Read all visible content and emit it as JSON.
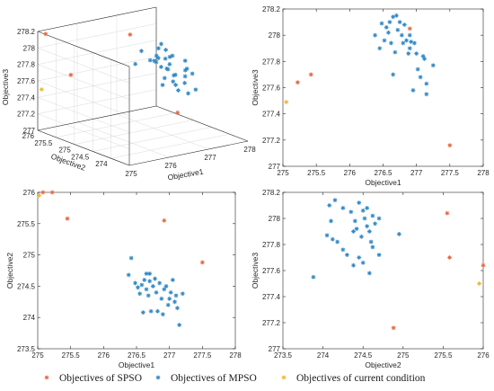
{
  "colors": {
    "spso": "#e8663d",
    "mpso": "#2f87c4",
    "current": "#f2b632"
  },
  "legend": [
    {
      "label": "Objectives of SPSO",
      "series": "spso",
      "color": "#e8663d"
    },
    {
      "label": "Objectives of MPSO",
      "series": "mpso",
      "color": "#2f87c4"
    },
    {
      "label": "Objectives of current condition",
      "series": "current",
      "color": "#f2b632"
    }
  ],
  "chart_data": [
    {
      "type": "scatter3d",
      "xlabel": "Objective1",
      "ylabel": "Objective2",
      "zlabel": "Objective3",
      "xlim": [
        275,
        278
      ],
      "ylim": [
        273.5,
        276
      ],
      "zlim": [
        277,
        278.2
      ],
      "xticks": [
        "275",
        "276",
        "277",
        "278"
      ],
      "yticks": [
        "274",
        "274.5",
        "275",
        "275.5",
        "276"
      ],
      "zticks": [
        "277",
        "277.2",
        "277.4",
        "277.6",
        "277.8",
        "278",
        "278.2"
      ],
      "series": [
        {
          "key": "spso",
          "points": [
            [
              275.2,
              276.0,
              278.15
            ],
            [
              275.45,
              275.58,
              277.7
            ],
            [
              276.92,
              275.55,
              278.05
            ],
            [
              277.5,
              274.88,
              277.16
            ]
          ]
        },
        {
          "key": "mpso",
          "points": [
            [
              276.4,
              274.68,
              278.05
            ],
            [
              276.5,
              274.55,
              277.95
            ],
            [
              276.62,
              274.45,
              278.1
            ],
            [
              276.7,
              274.6,
              277.9
            ],
            [
              276.75,
              274.52,
              277.85
            ],
            [
              276.8,
              274.7,
              277.95
            ],
            [
              276.85,
              274.3,
              277.7
            ],
            [
              276.9,
              274.45,
              277.88
            ],
            [
              276.95,
              274.58,
              277.8
            ],
            [
              277.0,
              274.4,
              277.75
            ],
            [
              277.05,
              274.2,
              277.68
            ],
            [
              277.1,
              274.5,
              277.6
            ],
            [
              277.15,
              274.1,
              277.8
            ],
            [
              276.55,
              274.38,
              278.0
            ],
            [
              276.65,
              274.6,
              277.92
            ],
            [
              276.72,
              274.25,
              278.02
            ],
            [
              276.82,
              274.48,
              277.95
            ],
            [
              276.88,
              274.62,
              277.6
            ],
            [
              276.98,
              274.3,
              277.58
            ],
            [
              277.2,
              274.35,
              277.72
            ],
            [
              276.6,
              274.05,
              278.08
            ],
            [
              276.78,
              274.55,
              278.12
            ],
            [
              276.92,
              274.0,
              277.9
            ],
            [
              277.05,
              273.9,
              277.65
            ],
            [
              277.12,
              274.18,
              277.55
            ],
            [
              276.45,
              274.9,
              277.85
            ],
            [
              276.58,
              274.15,
              277.9
            ],
            [
              277.25,
              274.4,
              277.78
            ],
            [
              276.7,
              274.12,
              277.82
            ],
            [
              276.85,
              274.5,
              278.05
            ],
            [
              276.68,
              274.35,
              277.75
            ],
            [
              276.95,
              274.08,
              277.98
            ]
          ]
        },
        {
          "key": "current",
          "points": [
            [
              275.05,
              275.95,
              277.5
            ]
          ]
        }
      ]
    },
    {
      "type": "scatter",
      "xlabel": "Objective1",
      "ylabel": "Objective3",
      "xlim": [
        275,
        278
      ],
      "ylim": [
        277,
        278.2
      ],
      "xticks": [
        "275",
        "275.5",
        "276",
        "276.5",
        "277",
        "277.5",
        "278"
      ],
      "yticks": [
        "277",
        "277.2",
        "277.4",
        "277.6",
        "277.8",
        "278",
        "278.2"
      ],
      "series": [
        {
          "key": "spso",
          "points": [
            [
              275.22,
              277.64
            ],
            [
              275.42,
              277.7
            ],
            [
              276.9,
              278.05
            ],
            [
              277.5,
              277.16
            ]
          ]
        },
        {
          "key": "mpso",
          "points": [
            [
              276.38,
              278.0
            ],
            [
              276.45,
              277.9
            ],
            [
              276.48,
              278.09
            ],
            [
              276.52,
              277.96
            ],
            [
              276.55,
              278.06
            ],
            [
              276.58,
              278.02
            ],
            [
              276.6,
              278.1
            ],
            [
              276.62,
              277.94
            ],
            [
              276.65,
              277.7
            ],
            [
              276.65,
              278.14
            ],
            [
              276.7,
              278.15
            ],
            [
              276.72,
              278.04
            ],
            [
              276.75,
              278.1
            ],
            [
              276.78,
              278.0
            ],
            [
              276.8,
              277.94
            ],
            [
              276.82,
              278.08
            ],
            [
              276.85,
              277.96
            ],
            [
              276.88,
              277.86
            ],
            [
              276.9,
              277.9
            ],
            [
              276.92,
              277.95
            ],
            [
              276.95,
              277.58
            ],
            [
              276.97,
              277.94
            ],
            [
              277.0,
              277.86
            ],
            [
              277.02,
              277.74
            ],
            [
              277.06,
              277.68
            ],
            [
              277.1,
              277.84
            ],
            [
              277.12,
              277.82
            ],
            [
              277.15,
              277.55
            ],
            [
              277.15,
              277.63
            ],
            [
              277.25,
              277.77
            ],
            [
              276.9,
              278.0
            ],
            [
              276.68,
              277.87
            ]
          ]
        },
        {
          "key": "current",
          "points": [
            [
              275.05,
              277.49
            ]
          ]
        }
      ]
    },
    {
      "type": "scatter",
      "xlabel": "Objective1",
      "ylabel": "Objective2",
      "xlim": [
        275,
        278
      ],
      "ylim": [
        273.5,
        276
      ],
      "xticks": [
        "275",
        "275.5",
        "276",
        "276.5",
        "277",
        "277.5",
        "278"
      ],
      "yticks": [
        "273.5",
        "274",
        "274.5",
        "275",
        "275.5",
        "276"
      ],
      "series": [
        {
          "key": "spso",
          "points": [
            [
              275.08,
              276.0
            ],
            [
              275.22,
              276.0
            ],
            [
              275.45,
              275.58
            ],
            [
              276.92,
              275.55
            ],
            [
              277.5,
              274.88
            ]
          ]
        },
        {
          "key": "mpso",
          "points": [
            [
              276.38,
              274.68
            ],
            [
              276.42,
              274.95
            ],
            [
              276.48,
              274.55
            ],
            [
              276.52,
              274.48
            ],
            [
              276.55,
              274.38
            ],
            [
              276.58,
              274.52
            ],
            [
              276.62,
              274.6
            ],
            [
              276.65,
              274.45
            ],
            [
              276.65,
              274.7
            ],
            [
              276.68,
              274.35
            ],
            [
              276.7,
              274.58
            ],
            [
              276.72,
              274.1
            ],
            [
              276.75,
              274.5
            ],
            [
              276.78,
              274.62
            ],
            [
              276.8,
              274.4
            ],
            [
              276.82,
              274.1
            ],
            [
              276.85,
              274.55
            ],
            [
              276.88,
              274.3
            ],
            [
              276.9,
              274.05
            ],
            [
              276.92,
              274.45
            ],
            [
              276.95,
              274.5
            ],
            [
              276.98,
              274.2
            ],
            [
              277.0,
              274.3
            ],
            [
              277.02,
              274.4
            ],
            [
              277.05,
              274.6
            ],
            [
              277.08,
              274.25
            ],
            [
              277.1,
              274.35
            ],
            [
              277.12,
              274.15
            ],
            [
              277.15,
              273.88
            ],
            [
              277.2,
              274.38
            ],
            [
              276.6,
              274.08
            ],
            [
              276.7,
              274.7
            ]
          ]
        },
        {
          "key": "current",
          "points": [
            [
              275.02,
              275.95
            ]
          ]
        }
      ]
    },
    {
      "type": "scatter",
      "xlabel": "Objective2",
      "ylabel": "Objective3",
      "xlim": [
        273.5,
        276
      ],
      "ylim": [
        277,
        278.2
      ],
      "xticks": [
        "273.5",
        "274",
        "274.5",
        "275",
        "275.5",
        "276"
      ],
      "yticks": [
        "277",
        "277.2",
        "277.4",
        "277.6",
        "277.8",
        "278",
        "278.2"
      ],
      "series": [
        {
          "key": "spso",
          "points": [
            [
              274.88,
              277.16
            ],
            [
              275.55,
              278.04
            ],
            [
              275.58,
              277.7
            ],
            [
              276.0,
              277.64
            ]
          ]
        },
        {
          "key": "mpso",
          "points": [
            [
              273.88,
              277.55
            ],
            [
              274.05,
              277.87
            ],
            [
              274.08,
              278.1
            ],
            [
              274.1,
              277.98
            ],
            [
              274.12,
              277.84
            ],
            [
              274.15,
              278.14
            ],
            [
              274.18,
              277.82
            ],
            [
              274.25,
              277.76
            ],
            [
              274.3,
              277.72
            ],
            [
              274.35,
              278.05
            ],
            [
              274.38,
              277.64
            ],
            [
              274.4,
              277.98
            ],
            [
              274.42,
              277.92
            ],
            [
              274.45,
              278.12
            ],
            [
              274.48,
              277.86
            ],
            [
              274.5,
              277.66
            ],
            [
              274.52,
              278.0
            ],
            [
              274.55,
              278.08
            ],
            [
              274.55,
              277.94
            ],
            [
              274.58,
              277.9
            ],
            [
              274.6,
              277.82
            ],
            [
              274.62,
              278.02
            ],
            [
              274.65,
              277.96
            ],
            [
              274.7,
              277.72
            ],
            [
              274.45,
              277.7
            ],
            [
              274.58,
              277.58
            ],
            [
              274.7,
              278.0
            ],
            [
              274.95,
              277.88
            ],
            [
              274.38,
              277.9
            ],
            [
              274.5,
              278.06
            ],
            [
              274.25,
              278.08
            ],
            [
              274.62,
              277.78
            ]
          ]
        },
        {
          "key": "current",
          "points": [
            [
              275.95,
              277.5
            ]
          ]
        }
      ]
    }
  ]
}
